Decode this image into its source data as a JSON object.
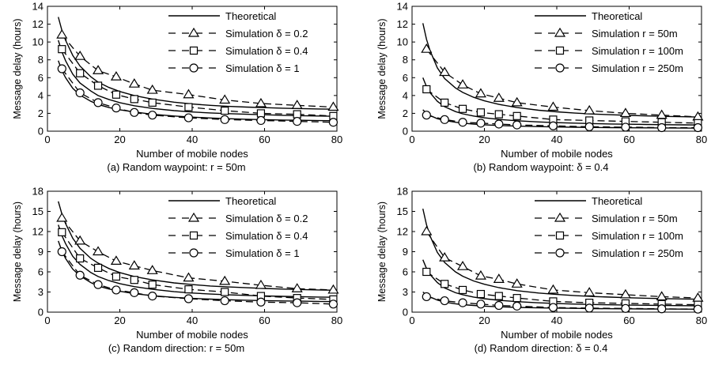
{
  "chart_data": [
    {
      "type": "line",
      "caption": "(a) Random waypoint: r = 50m",
      "xlabel": "Number of mobile nodes",
      "ylabel": "Message delay (hours)",
      "xlim": [
        0,
        80
      ],
      "ylim": [
        0,
        14
      ],
      "xticks": [
        0,
        20,
        40,
        60,
        80
      ],
      "yticks": [
        0,
        2,
        4,
        6,
        8,
        10,
        12,
        14
      ],
      "legend_position": "top-right",
      "grid": false,
      "legend": [
        "Theoretical",
        "Simulation δ = 0.2",
        "Simulation δ = 0.4",
        "Simulation δ = 1"
      ],
      "theoretical": [
        {
          "x": [
            3,
            4,
            5,
            7,
            9,
            12,
            14,
            17,
            20,
            24,
            29,
            35,
            40,
            45,
            50,
            55,
            60,
            65,
            70,
            75,
            80
          ],
          "y": [
            12.8,
            11.3,
            10.2,
            8.5,
            7.3,
            6.1,
            5.5,
            4.9,
            4.45,
            4.0,
            3.6,
            3.25,
            3.05,
            2.9,
            2.78,
            2.7,
            2.64,
            2.58,
            2.53,
            2.49,
            2.46
          ]
        },
        {
          "x": [
            3,
            4,
            5,
            7,
            9,
            12,
            14,
            17,
            20,
            24,
            29,
            35,
            40,
            45,
            50,
            55,
            60,
            65,
            70,
            75,
            80
          ],
          "y": [
            10.2,
            8.9,
            7.9,
            6.4,
            5.4,
            4.5,
            4.0,
            3.55,
            3.2,
            2.85,
            2.55,
            2.3,
            2.15,
            2.05,
            1.97,
            1.9,
            1.84,
            1.78,
            1.74,
            1.7,
            1.67
          ]
        },
        {
          "x": [
            3,
            4,
            5,
            7,
            9,
            12,
            14,
            17,
            20,
            24,
            29,
            35,
            40,
            45,
            50,
            55,
            60,
            65,
            70,
            75,
            80
          ],
          "y": [
            7.9,
            6.8,
            6.0,
            4.8,
            4.05,
            3.35,
            3.0,
            2.65,
            2.4,
            2.15,
            1.9,
            1.7,
            1.58,
            1.48,
            1.4,
            1.34,
            1.29,
            1.25,
            1.22,
            1.19,
            1.17
          ]
        }
      ],
      "series": [
        {
          "name": "Simulation δ = 0.2",
          "marker": "triangle",
          "x": [
            4,
            9,
            14,
            19,
            24,
            29,
            39,
            49,
            59,
            69,
            79
          ],
          "y": [
            10.8,
            8.4,
            6.8,
            6.1,
            5.3,
            4.6,
            4.1,
            3.5,
            3.1,
            2.9,
            2.7
          ]
        },
        {
          "name": "Simulation δ = 0.4",
          "marker": "square",
          "x": [
            4,
            9,
            14,
            19,
            24,
            29,
            39,
            49,
            59,
            69,
            79
          ],
          "y": [
            9.2,
            6.5,
            5.1,
            4.1,
            3.6,
            3.2,
            2.7,
            2.3,
            2.0,
            1.9,
            1.7
          ]
        },
        {
          "name": "Simulation δ = 1",
          "marker": "circle",
          "x": [
            4,
            9,
            14,
            19,
            24,
            29,
            39,
            49,
            59,
            69,
            79
          ],
          "y": [
            7.0,
            4.3,
            3.2,
            2.6,
            2.1,
            1.8,
            1.5,
            1.3,
            1.2,
            1.1,
            1.0
          ]
        }
      ]
    },
    {
      "type": "line",
      "caption": "(b) Random waypoint: δ = 0.4",
      "xlabel": "Number of mobile nodes",
      "ylabel": "Message delay (hours)",
      "xlim": [
        0,
        80
      ],
      "ylim": [
        0,
        14
      ],
      "xticks": [
        0,
        20,
        40,
        60,
        80
      ],
      "yticks": [
        0,
        2,
        4,
        6,
        8,
        10,
        12,
        14
      ],
      "legend_position": "top-right",
      "grid": false,
      "legend": [
        "Theoretical",
        "Simulation r = 50m",
        "Simulation r = 100m",
        "Simulation r = 250m"
      ],
      "theoretical": [
        {
          "x": [
            3,
            4,
            5,
            7,
            9,
            12,
            14,
            17,
            20,
            24,
            29,
            35,
            40,
            45,
            50,
            55,
            60,
            65,
            70,
            75,
            80
          ],
          "y": [
            12.1,
            10.3,
            9.0,
            7.1,
            5.9,
            4.85,
            4.35,
            3.8,
            3.4,
            3.0,
            2.65,
            2.35,
            2.17,
            2.03,
            1.92,
            1.84,
            1.77,
            1.71,
            1.66,
            1.62,
            1.58
          ]
        },
        {
          "x": [
            3,
            4,
            5,
            7,
            9,
            12,
            14,
            17,
            20,
            24,
            29,
            35,
            40,
            45,
            50,
            55,
            60,
            65,
            70,
            75,
            80
          ],
          "y": [
            6.0,
            5.0,
            4.3,
            3.35,
            2.75,
            2.2,
            1.95,
            1.7,
            1.5,
            1.32,
            1.17,
            1.04,
            0.96,
            0.9,
            0.85,
            0.81,
            0.78,
            0.75,
            0.73,
            0.71,
            0.69
          ]
        },
        {
          "x": [
            3,
            4,
            5,
            7,
            9,
            12,
            14,
            17,
            20,
            24,
            29,
            35,
            40,
            45,
            50,
            55,
            60,
            65,
            70,
            75,
            80
          ],
          "y": [
            2.4,
            2.0,
            1.75,
            1.4,
            1.2,
            1.0,
            0.9,
            0.8,
            0.72,
            0.64,
            0.57,
            0.51,
            0.47,
            0.44,
            0.42,
            0.4,
            0.38,
            0.37,
            0.36,
            0.35,
            0.34
          ]
        }
      ],
      "series": [
        {
          "name": "Simulation r = 50m",
          "marker": "triangle",
          "x": [
            4,
            9,
            14,
            19,
            24,
            29,
            39,
            49,
            59,
            69,
            79
          ],
          "y": [
            9.2,
            6.6,
            5.2,
            4.2,
            3.7,
            3.2,
            2.7,
            2.3,
            2.0,
            1.8,
            1.6
          ]
        },
        {
          "name": "Simulation r = 100m",
          "marker": "square",
          "x": [
            4,
            9,
            14,
            19,
            24,
            29,
            39,
            49,
            59,
            69,
            79
          ],
          "y": [
            4.7,
            3.2,
            2.5,
            2.1,
            1.9,
            1.7,
            1.3,
            1.2,
            1.1,
            1.0,
            0.9
          ]
        },
        {
          "name": "Simulation r = 250m",
          "marker": "circle",
          "x": [
            4,
            9,
            14,
            19,
            24,
            29,
            39,
            49,
            59,
            69,
            79
          ],
          "y": [
            1.8,
            1.3,
            1.0,
            0.9,
            0.8,
            0.7,
            0.6,
            0.5,
            0.45,
            0.4,
            0.4
          ]
        }
      ]
    },
    {
      "type": "line",
      "caption": "(c) Random direction: r = 50m",
      "xlabel": "Number of mobile nodes",
      "ylabel": "Message delay (hours)",
      "xlim": [
        0,
        80
      ],
      "ylim": [
        0,
        18
      ],
      "xticks": [
        0,
        20,
        40,
        60,
        80
      ],
      "yticks": [
        0,
        3,
        6,
        9,
        12,
        15,
        18
      ],
      "legend_position": "top-right",
      "grid": false,
      "legend": [
        "Theoretical",
        "Simulation δ = 0.2",
        "Simulation δ = 0.4",
        "Simulation δ = 1"
      ],
      "theoretical": [
        {
          "x": [
            3,
            4,
            5,
            7,
            9,
            12,
            14,
            17,
            20,
            24,
            29,
            35,
            40,
            45,
            50,
            55,
            60,
            65,
            70,
            75,
            80
          ],
          "y": [
            16.5,
            14.6,
            13.2,
            11.0,
            9.5,
            8.0,
            7.3,
            6.5,
            5.9,
            5.3,
            4.8,
            4.35,
            4.1,
            3.9,
            3.75,
            3.63,
            3.53,
            3.44,
            3.37,
            3.31,
            3.26
          ]
        },
        {
          "x": [
            3,
            4,
            5,
            7,
            9,
            12,
            14,
            17,
            20,
            24,
            29,
            35,
            40,
            45,
            50,
            55,
            60,
            65,
            70,
            75,
            80
          ],
          "y": [
            13.0,
            11.4,
            10.2,
            8.3,
            7.1,
            5.9,
            5.3,
            4.7,
            4.25,
            3.8,
            3.4,
            3.05,
            2.85,
            2.7,
            2.58,
            2.49,
            2.42,
            2.35,
            2.3,
            2.25,
            2.21
          ]
        },
        {
          "x": [
            3,
            4,
            5,
            7,
            9,
            12,
            14,
            17,
            20,
            24,
            29,
            35,
            40,
            45,
            50,
            55,
            60,
            65,
            70,
            75,
            80
          ],
          "y": [
            10.6,
            9.1,
            8.0,
            6.4,
            5.4,
            4.4,
            3.9,
            3.45,
            3.1,
            2.75,
            2.45,
            2.2,
            2.05,
            1.94,
            1.85,
            1.78,
            1.72,
            1.67,
            1.63,
            1.6,
            1.57
          ]
        }
      ],
      "series": [
        {
          "name": "Simulation δ = 0.2",
          "marker": "triangle",
          "x": [
            4,
            9,
            14,
            19,
            24,
            29,
            39,
            49,
            59,
            69,
            79
          ],
          "y": [
            14.0,
            10.6,
            9.0,
            7.6,
            6.9,
            6.2,
            5.1,
            4.6,
            4.0,
            3.5,
            3.3
          ]
        },
        {
          "name": "Simulation δ = 0.4",
          "marker": "square",
          "x": [
            4,
            9,
            14,
            19,
            24,
            29,
            39,
            49,
            59,
            69,
            79
          ],
          "y": [
            11.9,
            8.0,
            6.6,
            5.3,
            4.8,
            4.1,
            3.4,
            3.0,
            2.4,
            2.1,
            1.9
          ]
        },
        {
          "name": "Simulation δ = 1",
          "marker": "circle",
          "x": [
            4,
            9,
            14,
            19,
            24,
            29,
            39,
            49,
            59,
            69,
            79
          ],
          "y": [
            9.0,
            5.5,
            4.1,
            3.3,
            2.9,
            2.4,
            2.0,
            1.7,
            1.5,
            1.4,
            1.2
          ]
        }
      ]
    },
    {
      "type": "line",
      "caption": "(d) Random direction: δ = 0.4",
      "xlabel": "Number of mobile nodes",
      "ylabel": "Message delay (hours)",
      "xlim": [
        0,
        80
      ],
      "ylim": [
        0,
        18
      ],
      "xticks": [
        0,
        20,
        40,
        60,
        80
      ],
      "yticks": [
        0,
        3,
        6,
        9,
        12,
        15,
        18
      ],
      "legend_position": "top-right",
      "grid": false,
      "legend": [
        "Theoretical",
        "Simulation r = 50m",
        "Simulation r = 100m",
        "Simulation r = 250m"
      ],
      "theoretical": [
        {
          "x": [
            3,
            4,
            5,
            7,
            9,
            12,
            14,
            17,
            20,
            24,
            29,
            35,
            40,
            45,
            50,
            55,
            60,
            65,
            70,
            75,
            80
          ],
          "y": [
            15.4,
            13.0,
            11.3,
            8.9,
            7.4,
            6.0,
            5.35,
            4.65,
            4.15,
            3.65,
            3.2,
            2.85,
            2.63,
            2.46,
            2.33,
            2.23,
            2.14,
            2.07,
            2.01,
            1.96,
            1.92
          ]
        },
        {
          "x": [
            3,
            4,
            5,
            7,
            9,
            12,
            14,
            17,
            20,
            24,
            29,
            35,
            40,
            45,
            50,
            55,
            60,
            65,
            70,
            75,
            80
          ],
          "y": [
            7.8,
            6.5,
            5.6,
            4.4,
            3.6,
            2.9,
            2.6,
            2.25,
            2.0,
            1.77,
            1.56,
            1.39,
            1.28,
            1.2,
            1.14,
            1.09,
            1.05,
            1.02,
            0.99,
            0.96,
            0.94
          ]
        },
        {
          "x": [
            3,
            4,
            5,
            7,
            9,
            12,
            14,
            17,
            20,
            24,
            29,
            35,
            40,
            45,
            50,
            55,
            60,
            65,
            70,
            75,
            80
          ],
          "y": [
            3.0,
            2.55,
            2.25,
            1.8,
            1.5,
            1.25,
            1.12,
            1.0,
            0.9,
            0.8,
            0.71,
            0.64,
            0.6,
            0.56,
            0.53,
            0.51,
            0.49,
            0.47,
            0.46,
            0.45,
            0.44
          ]
        }
      ],
      "series": [
        {
          "name": "Simulation r = 50m",
          "marker": "triangle",
          "x": [
            4,
            9,
            14,
            19,
            24,
            29,
            39,
            49,
            59,
            69,
            79
          ],
          "y": [
            12.0,
            8.1,
            6.8,
            5.4,
            4.9,
            4.2,
            3.3,
            2.9,
            2.6,
            2.3,
            2.1
          ]
        },
        {
          "name": "Simulation r = 100m",
          "marker": "square",
          "x": [
            4,
            9,
            14,
            19,
            24,
            29,
            39,
            49,
            59,
            69,
            79
          ],
          "y": [
            6.0,
            4.2,
            3.3,
            2.7,
            2.4,
            2.1,
            1.6,
            1.4,
            1.3,
            1.2,
            1.1
          ]
        },
        {
          "name": "Simulation r = 250m",
          "marker": "circle",
          "x": [
            4,
            9,
            14,
            19,
            24,
            29,
            39,
            49,
            59,
            69,
            79
          ],
          "y": [
            2.3,
            1.7,
            1.4,
            1.2,
            1.0,
            0.9,
            0.7,
            0.6,
            0.55,
            0.5,
            0.45
          ]
        }
      ]
    }
  ]
}
